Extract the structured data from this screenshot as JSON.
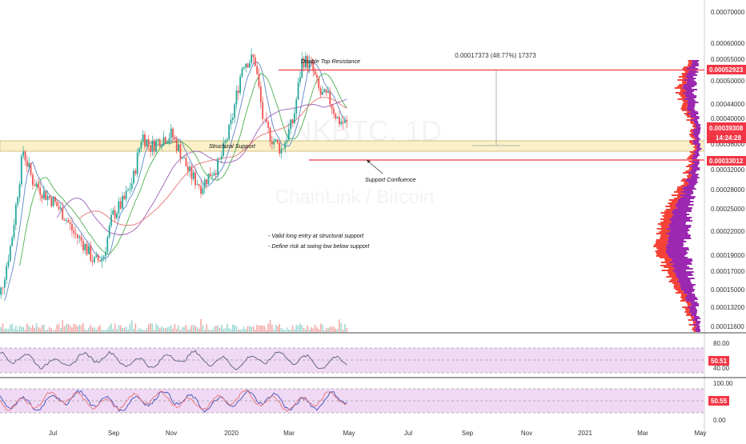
{
  "chart_data": {
    "type": "candlestick",
    "watermark": {
      "symbol": "LINKBTC, 1D",
      "name": "ChainLink / Bitcoin"
    },
    "x_axis": {
      "tick_labels": [
        "Jul",
        "Sep",
        "Nov",
        "2020",
        "Mar",
        "May",
        "Jul",
        "Sep",
        "Nov",
        "2021",
        "Mar",
        "May"
      ]
    },
    "y_axis": {
      "scale": "log",
      "tick_labels": [
        "0.00070000",
        "0.00060000",
        "0.00055000",
        "0.00050000",
        "0.00044000",
        "0.00040000",
        "0.00036000",
        "0.00032000",
        "0.00028000",
        "0.00025000",
        "0.00022000",
        "0.00019000",
        "0.00017000",
        "0.00015000",
        "0.00013200",
        "0.00011600"
      ],
      "ylim": [
        0.000106,
        0.00075
      ]
    },
    "price_path": {
      "months": [
        5.0,
        5.3,
        5.6,
        6.0,
        6.3,
        6.7,
        7.0,
        7.4,
        7.7,
        8.0,
        8.4,
        8.7,
        9.0,
        9.4,
        9.7,
        10.0,
        10.3,
        10.6,
        11.0,
        11.3,
        11.6,
        12.0,
        12.3,
        12.6,
        13.0,
        13.4,
        13.8,
        14.1,
        14.4,
        14.7,
        15.1,
        15.4,
        15.7,
        16.0,
        16.3,
        16.6,
        16.9
      ],
      "close": [
        0.000115,
        0.00014,
        0.00018,
        0.00031,
        0.00026,
        0.00024,
        0.00023,
        0.00021,
        0.00019,
        0.00018,
        0.00016,
        0.000165,
        0.00021,
        0.00023,
        0.00026,
        0.00034,
        0.000315,
        0.00033,
        0.00034,
        0.000305,
        0.00027,
        0.00025,
        0.00027,
        0.000285,
        0.00036,
        0.00052,
        0.00053,
        0.00036,
        0.00033,
        0.00031,
        0.00037,
        0.00053,
        0.00051,
        0.00043,
        0.00042,
        0.00037,
        0.00036
      ]
    },
    "horizontal_levels": [
      {
        "price": 0.00052923,
        "label": "0.00052923",
        "color": "#f23645"
      },
      {
        "price": 0.00033012,
        "label": "0.00033012",
        "color": "#f23645"
      }
    ],
    "current_price": {
      "label": "0.00039308",
      "countdown": "14:24:28",
      "color": "#f23645"
    },
    "structural_support_zone": [
      0.00033,
      0.00035
    ],
    "annotations": {
      "double_top": "Double Top Resistance",
      "structural_support": "Structural Support",
      "support_confluence": "Support Confluence",
      "note_1": "- Valid long entry at structural support",
      "note_2": "- Define risk at swing low below support",
      "measure": "0.00017373 (48.77%) 17373"
    },
    "rsi": {
      "tick_labels": [
        "80.00",
        "40.00"
      ],
      "value_label": "50.51",
      "band": [
        30,
        70
      ]
    },
    "stoch_rsi": {
      "tick_labels": [
        "100.00",
        "0.00"
      ],
      "value_label": "50.55",
      "band": [
        20,
        80
      ]
    },
    "colors": {
      "up": "#26a69a",
      "down": "#ef5350",
      "level_line": "#f23645",
      "support_zone": "#fbf0c8",
      "ma_green": "#4caf50",
      "ma_blue": "#5c86c9",
      "ma_purple": "#9c5fb5",
      "ma_red": "#e57373",
      "volume_profile_up": "#9c27b0",
      "volume_profile_down": "#f44336",
      "oscillator_band": "#f0d9f5"
    }
  }
}
